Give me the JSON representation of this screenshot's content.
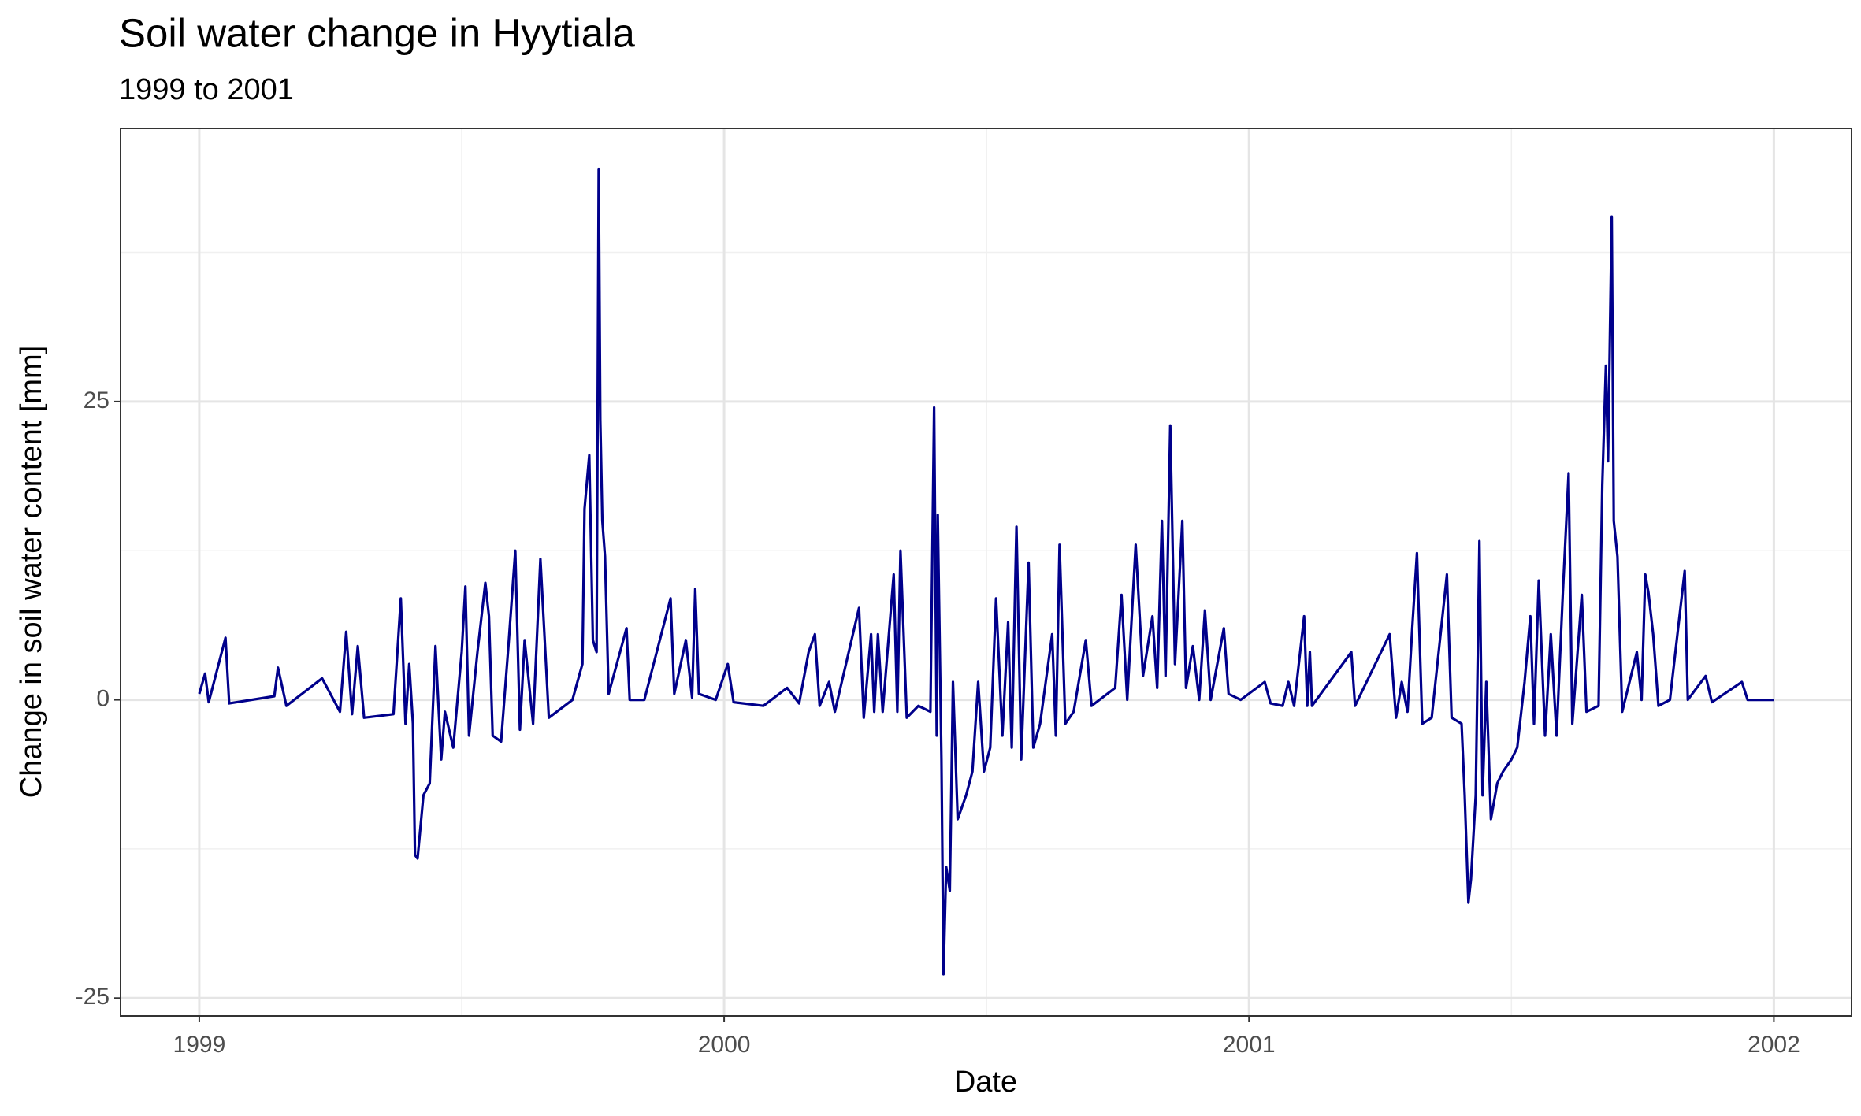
{
  "chart_data": {
    "type": "line",
    "title": "Soil water change in Hyytiala",
    "subtitle": "1999 to 2001",
    "x_label": "Date",
    "y_label": "Change in soil water content [mm]",
    "color": "#00008b",
    "grid": true,
    "xlim": [
      1998.85,
      2002.148
    ],
    "ylim": [
      -26.5,
      47.9
    ],
    "xticks": [
      1999,
      2000,
      2001,
      2002
    ],
    "yticks": [
      -25,
      0,
      25
    ],
    "xminor": [
      1999.5,
      2000.5,
      2001.5
    ],
    "yminor": [
      -12.5,
      12.5,
      37.5
    ],
    "x": [
      1999.0,
      1999.011,
      1999.018,
      1999.05,
      1999.057,
      1999.143,
      1999.15,
      1999.166,
      1999.234,
      1999.268,
      1999.28,
      1999.291,
      1999.302,
      1999.314,
      1999.37,
      1999.384,
      1999.393,
      1999.4,
      1999.407,
      1999.411,
      1999.416,
      1999.427,
      1999.439,
      1999.45,
      1999.461,
      1999.468,
      1999.484,
      1999.5,
      1999.507,
      1999.514,
      1999.53,
      1999.545,
      1999.552,
      1999.559,
      1999.575,
      1999.589,
      1999.602,
      1999.611,
      1999.62,
      1999.636,
      1999.65,
      1999.666,
      1999.711,
      1999.73,
      1999.734,
      1999.743,
      1999.75,
      1999.757,
      1999.761,
      1999.764,
      1999.768,
      1999.773,
      1999.78,
      1999.814,
      1999.82,
      1999.848,
      1999.898,
      1999.905,
      1999.927,
      1999.939,
      1999.945,
      1999.952,
      1999.984,
      2000.007,
      2000.018,
      2000.075,
      2000.12,
      2000.143,
      2000.161,
      2000.173,
      2000.182,
      2000.2,
      2000.211,
      2000.257,
      2000.266,
      2000.28,
      2000.286,
      2000.293,
      2000.302,
      2000.323,
      2000.33,
      2000.336,
      2000.348,
      2000.37,
      2000.393,
      2000.4,
      2000.405,
      2000.407,
      2000.414,
      2000.418,
      2000.423,
      2000.43,
      2000.436,
      2000.445,
      2000.461,
      2000.473,
      2000.484,
      2000.495,
      2000.507,
      2000.518,
      2000.53,
      2000.541,
      2000.548,
      2000.557,
      2000.566,
      2000.58,
      2000.589,
      2000.602,
      2000.625,
      2000.632,
      2000.639,
      2000.65,
      2000.666,
      2000.689,
      2000.7,
      2000.745,
      2000.757,
      2000.768,
      2000.784,
      2000.798,
      2000.816,
      2000.825,
      2000.834,
      2000.841,
      2000.85,
      2000.859,
      2000.873,
      2000.88,
      2000.893,
      2000.905,
      2000.916,
      2000.927,
      2000.952,
      2000.961,
      2000.984,
      2001.03,
      2001.041,
      2001.064,
      2001.075,
      2001.086,
      2001.105,
      2001.111,
      2001.116,
      2001.12,
      2001.195,
      2001.202,
      2001.268,
      2001.28,
      2001.291,
      2001.302,
      2001.311,
      2001.32,
      2001.33,
      2001.348,
      2001.377,
      2001.386,
      2001.405,
      2001.411,
      2001.418,
      2001.423,
      2001.432,
      2001.439,
      2001.445,
      2001.452,
      2001.461,
      2001.473,
      2001.484,
      2001.5,
      2001.511,
      2001.525,
      2001.536,
      2001.543,
      2001.552,
      2001.564,
      2001.575,
      2001.586,
      2001.598,
      2001.609,
      2001.616,
      2001.634,
      2001.643,
      2001.666,
      2001.673,
      2001.68,
      2001.684,
      2001.691,
      2001.695,
      2001.702,
      2001.711,
      2001.739,
      2001.748,
      2001.755,
      2001.761,
      2001.77,
      2001.78,
      2001.802,
      2001.83,
      2001.836,
      2001.87,
      2001.882,
      2001.939,
      2001.95,
      2002.0
    ],
    "values": [
      0.5,
      2.2,
      -0.2,
      5.2,
      -0.3,
      0.3,
      2.7,
      -0.5,
      1.8,
      -1,
      5.7,
      -1.2,
      4.5,
      -1.5,
      -1.2,
      8.5,
      -2,
      3,
      -2,
      -13,
      -13.3,
      -8,
      -7,
      4.5,
      -5,
      -1,
      -4,
      4,
      9.5,
      -3,
      4,
      9.8,
      7,
      -3,
      -3.5,
      4.5,
      12.5,
      -2.5,
      5,
      -2,
      11.8,
      -1.5,
      0,
      3,
      16,
      20.5,
      5,
      4,
      44.5,
      23.5,
      15,
      12,
      0.5,
      6,
      0,
      0,
      8.5,
      0.5,
      5,
      0.2,
      9.3,
      0.5,
      0,
      3,
      -0.2,
      -0.5,
      1,
      -0.3,
      4,
      5.5,
      -0.5,
      1.5,
      -1,
      7.7,
      -1.5,
      5.5,
      -1,
      5.5,
      -1,
      10.5,
      -1,
      12.5,
      -1.5,
      -0.5,
      -1,
      24.5,
      -3,
      15.5,
      -5,
      -23,
      -14,
      -16,
      1.5,
      -10,
      -8,
      -6,
      1.5,
      -6,
      -4,
      8.5,
      -3,
      6.5,
      -4,
      14.5,
      -5,
      11.5,
      -4,
      -2,
      5.5,
      -3,
      13,
      -2,
      -1,
      5,
      -0.5,
      1,
      8.8,
      0,
      13,
      2,
      7,
      1,
      15,
      2,
      23,
      3,
      15,
      1,
      4.5,
      0,
      7.5,
      0,
      6,
      0.5,
      0,
      1.5,
      -0.3,
      -0.5,
      1.5,
      -0.5,
      7,
      -0.5,
      4,
      -0.5,
      4,
      -0.5,
      5.5,
      -1.5,
      1.5,
      -1,
      6,
      12.3,
      -2,
      -1.5,
      10.5,
      -1.5,
      -2,
      -8,
      -17,
      -15,
      -8,
      13.3,
      -8,
      1.5,
      -10,
      -7,
      -6,
      -5,
      -4,
      1.5,
      7,
      -2,
      10,
      -3,
      5.5,
      -3,
      9,
      19,
      -2,
      8.8,
      -1,
      -0.5,
      18,
      28,
      20,
      40.5,
      15,
      12,
      -1,
      4,
      0,
      10.5,
      9,
      5.5,
      -0.5,
      0,
      10.8,
      0,
      2,
      -0.2,
      1.5,
      0,
      0
    ]
  }
}
